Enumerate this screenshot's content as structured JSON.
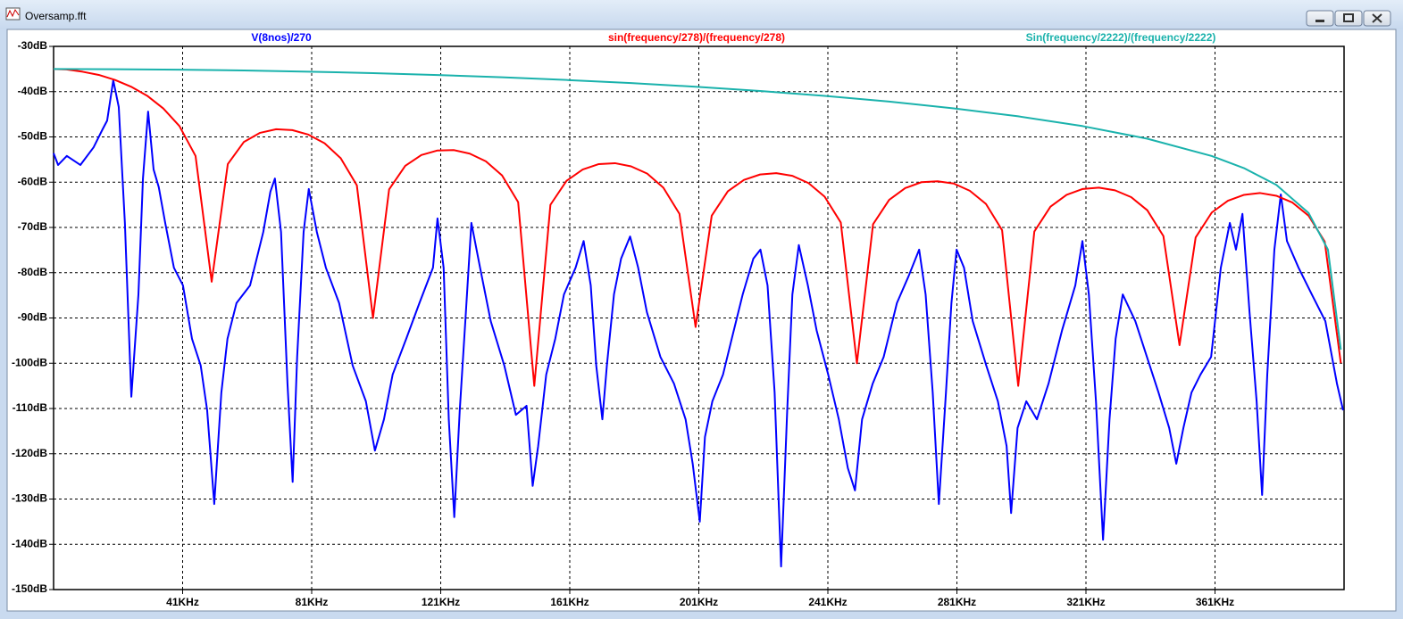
{
  "window": {
    "title": "Oversamp.fft"
  },
  "chart_data": {
    "type": "line",
    "xlim": [
      1,
      401
    ],
    "xticks": [
      {
        "value": 41,
        "label": "41KHz"
      },
      {
        "value": 81,
        "label": "81KHz"
      },
      {
        "value": 121,
        "label": "121KHz"
      },
      {
        "value": 161,
        "label": "161KHz"
      },
      {
        "value": 201,
        "label": "201KHz"
      },
      {
        "value": 241,
        "label": "241KHz"
      },
      {
        "value": 281,
        "label": "281KHz"
      },
      {
        "value": 321,
        "label": "321KHz"
      },
      {
        "value": 361,
        "label": "361KHz"
      }
    ],
    "ylim": [
      -150,
      -30
    ],
    "yticks": [
      {
        "value": -30,
        "label": "-30dB"
      },
      {
        "value": -40,
        "label": "-40dB"
      },
      {
        "value": -50,
        "label": "-50dB"
      },
      {
        "value": -60,
        "label": "-60dB"
      },
      {
        "value": -70,
        "label": "-70dB"
      },
      {
        "value": -80,
        "label": "-80dB"
      },
      {
        "value": -90,
        "label": "-90dB"
      },
      {
        "value": -100,
        "label": "-100dB"
      },
      {
        "value": -110,
        "label": "-110dB"
      },
      {
        "value": -120,
        "label": "-120dB"
      },
      {
        "value": -130,
        "label": "-130dB"
      },
      {
        "value": -140,
        "label": "-140dB"
      },
      {
        "value": -150,
        "label": "-150dB"
      }
    ],
    "grid": true,
    "series": [
      {
        "name": "V(8nos)/270",
        "color": "#0000ff",
        "x": [
          1.0,
          2.4,
          5.1,
          9.3,
          13.4,
          16.2,
          17.6,
          19.5,
          21.2,
          23.1,
          25.1,
          27.3,
          28.7,
          30.3,
          32.0,
          33.6,
          35.6,
          38.3,
          41.1,
          43.9,
          46.6,
          48.6,
          50.8,
          53.0,
          54.9,
          57.7,
          61.9,
          66.0,
          68.2,
          69.6,
          71.5,
          73.5,
          75.1,
          76.5,
          78.5,
          80.1,
          82.6,
          85.4,
          89.5,
          93.7,
          97.8,
          100.6,
          103.4,
          106.1,
          110.3,
          114.4,
          118.6,
          120.0,
          121.9,
          123.5,
          125.2,
          126.9,
          128.8,
          130.5,
          133.2,
          136.5,
          140.7,
          144.3,
          147.6,
          149.5,
          151.2,
          153.7,
          156.5,
          159.2,
          162.8,
          165.3,
          167.5,
          169.2,
          171.1,
          172.5,
          174.7,
          176.9,
          179.7,
          182.2,
          184.9,
          189.1,
          193.3,
          196.9,
          199.1,
          201.3,
          202.9,
          205.2,
          208.5,
          211.2,
          214.6,
          217.9,
          220.1,
          222.3,
          224.5,
          226.5,
          228.4,
          230.0,
          232.0,
          234.8,
          237.5,
          241.1,
          244.4,
          247.2,
          249.4,
          251.6,
          254.9,
          258.3,
          262.4,
          266.0,
          269.3,
          271.3,
          273.5,
          275.4,
          277.6,
          279.3,
          280.9,
          283.2,
          285.9,
          290.1,
          293.7,
          296.4,
          297.8,
          299.8,
          302.5,
          305.8,
          309.4,
          313.6,
          317.7,
          319.9,
          321.9,
          324.1,
          326.3,
          328.3,
          330.2,
          332.4,
          336.3,
          339.9,
          343.5,
          346.8,
          349.0,
          351.2,
          353.7,
          356.5,
          359.8,
          362.8,
          365.6,
          367.5,
          369.5,
          371.7,
          373.9,
          375.6,
          377.2,
          379.4,
          381.4,
          383.3,
          386.9,
          391.0,
          395.2,
          398.8,
          400.7
        ],
        "values": [
          -53.6,
          -56.2,
          -54.2,
          -56.2,
          -52.3,
          -48.3,
          -46.4,
          -37.5,
          -43.4,
          -69.0,
          -107.4,
          -84.8,
          -59.2,
          -44.4,
          -57.2,
          -61.1,
          -69.0,
          -78.9,
          -82.8,
          -94.6,
          -100.5,
          -110.4,
          -131.1,
          -106.5,
          -94.6,
          -86.7,
          -82.8,
          -71.0,
          -62.1,
          -59.2,
          -71.0,
          -104.5,
          -126.2,
          -98.6,
          -71.0,
          -61.5,
          -71.0,
          -78.9,
          -86.7,
          -100.5,
          -108.4,
          -119.3,
          -112.4,
          -102.5,
          -94.6,
          -86.7,
          -78.9,
          -68.0,
          -78.9,
          -112.4,
          -134.0,
          -110.4,
          -88.7,
          -69.0,
          -78.9,
          -90.7,
          -100.5,
          -111.4,
          -109.4,
          -127.1,
          -118.3,
          -102.5,
          -94.6,
          -84.8,
          -78.9,
          -73.0,
          -82.8,
          -100.5,
          -112.4,
          -100.5,
          -84.8,
          -76.9,
          -72.0,
          -78.9,
          -88.7,
          -98.6,
          -104.5,
          -112.4,
          -122.2,
          -135.0,
          -116.3,
          -108.4,
          -102.5,
          -94.6,
          -84.8,
          -76.9,
          -74.9,
          -82.8,
          -106.5,
          -144.9,
          -110.4,
          -84.8,
          -73.9,
          -82.8,
          -92.7,
          -102.5,
          -112.4,
          -123.2,
          -128.1,
          -112.4,
          -104.5,
          -98.6,
          -86.7,
          -80.8,
          -74.9,
          -84.8,
          -106.5,
          -131.1,
          -106.5,
          -86.7,
          -74.9,
          -78.9,
          -90.7,
          -100.5,
          -108.4,
          -118.3,
          -133.1,
          -114.3,
          -108.4,
          -112.4,
          -104.5,
          -92.7,
          -82.8,
          -73.0,
          -84.8,
          -108.4,
          -139.0,
          -112.4,
          -94.6,
          -84.8,
          -90.7,
          -98.6,
          -106.5,
          -114.3,
          -122.2,
          -114.3,
          -106.5,
          -102.5,
          -98.6,
          -78.9,
          -69.0,
          -74.9,
          -67.0,
          -88.7,
          -108.4,
          -129.1,
          -102.5,
          -74.9,
          -62.7,
          -73.0,
          -78.9,
          -84.8,
          -90.7,
          -104.5,
          -110.4
        ]
      },
      {
        "name": "sin(frequency/278)/(frequency/278)",
        "color": "#ff0000",
        "x": [
          1,
          5,
          10,
          15,
          20,
          25,
          30,
          35,
          40,
          45,
          50,
          55,
          60,
          65,
          70,
          75,
          80,
          85,
          90,
          95,
          100,
          105,
          110,
          115,
          120,
          125,
          130,
          135,
          140,
          145,
          150,
          155,
          160,
          165,
          170,
          175,
          180,
          185,
          190,
          195,
          200,
          205,
          210,
          215,
          220,
          225,
          230,
          235,
          240,
          245,
          250,
          255,
          260,
          265,
          270,
          275,
          280,
          285,
          290,
          295,
          300,
          305,
          310,
          315,
          320,
          325,
          330,
          335,
          340,
          345,
          350,
          355,
          360,
          365,
          370,
          375,
          380,
          385,
          390,
          395,
          400
        ],
        "values": [
          -35.0,
          -35.1,
          -35.6,
          -36.3,
          -37.4,
          -38.9,
          -40.9,
          -43.7,
          -47.6,
          -54.2,
          -82,
          -56.0,
          -51.1,
          -49.1,
          -48.3,
          -48.5,
          -49.5,
          -51.4,
          -54.7,
          -60.7,
          -90,
          -61.6,
          -56.4,
          -54.0,
          -53.0,
          -52.9,
          -53.7,
          -55.4,
          -58.5,
          -64.4,
          -105,
          -65.0,
          -59.7,
          -57.2,
          -56.0,
          -55.8,
          -56.5,
          -58.1,
          -61.2,
          -67.0,
          -92,
          -67.4,
          -62.0,
          -59.5,
          -58.3,
          -58.0,
          -58.6,
          -60.2,
          -63.2,
          -68.9,
          -100,
          -69.3,
          -63.9,
          -61.3,
          -60.0,
          -59.8,
          -60.3,
          -61.9,
          -64.8,
          -70.6,
          -105,
          -70.9,
          -65.4,
          -62.8,
          -61.5,
          -61.2,
          -61.8,
          -63.3,
          -66.2,
          -71.9,
          -96,
          -72.2,
          -66.7,
          -64.1,
          -62.8,
          -62.4,
          -63.0,
          -64.5,
          -67.4,
          -73.1,
          -100
        ]
      },
      {
        "name": "Sin(frequency/2222)/(frequency/2222)",
        "color": "#1ab2ac",
        "x": [
          1,
          20,
          40,
          60,
          80,
          100,
          120,
          140,
          160,
          180,
          200,
          220,
          240,
          260,
          280,
          300,
          320,
          340,
          360,
          370,
          380,
          390,
          396,
          400
        ],
        "values": [
          -35.0,
          -35.04,
          -35.14,
          -35.32,
          -35.58,
          -35.91,
          -36.33,
          -36.83,
          -37.42,
          -38.11,
          -38.92,
          -39.86,
          -40.94,
          -42.2,
          -43.69,
          -45.45,
          -47.62,
          -50.39,
          -54.23,
          -56.9,
          -60.6,
          -66.8,
          -74.9,
          -97
        ]
      }
    ]
  }
}
